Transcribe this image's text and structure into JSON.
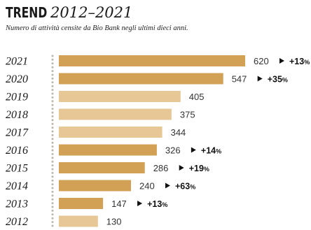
{
  "header": {
    "title_word": "TREND",
    "title_years": "2012–2021",
    "subtitle": "Numero di attività censite da Bio Bank negli ultimi dieci anni."
  },
  "colors": {
    "bar_dark": "#d3a155",
    "bar_light": "#e7c796",
    "text": "#1a1a1a",
    "dots": "#bdb6aa"
  },
  "chart_data": {
    "type": "bar",
    "orientation": "horizontal",
    "title": "TREND 2012–2021",
    "subtitle": "Numero di attività censite da Bio Bank negli ultimi dieci anni.",
    "categories": [
      "2021",
      "2020",
      "2019",
      "2018",
      "2017",
      "2016",
      "2015",
      "2014",
      "2013",
      "2012"
    ],
    "values": [
      620,
      547,
      405,
      375,
      344,
      326,
      286,
      240,
      147,
      130
    ],
    "value_labels": [
      "620",
      "547",
      "405",
      "375",
      "344",
      "326",
      "286",
      "240",
      "147",
      "130"
    ],
    "deltas": [
      "+13",
      "+35",
      "",
      "",
      "",
      "+14",
      "+19",
      "+63",
      "+13",
      ""
    ],
    "delta_unit": "%",
    "highlighted": [
      true,
      true,
      false,
      false,
      false,
      true,
      true,
      true,
      true,
      false
    ],
    "xlim": [
      0,
      620
    ],
    "grid": false,
    "legend": "none"
  }
}
